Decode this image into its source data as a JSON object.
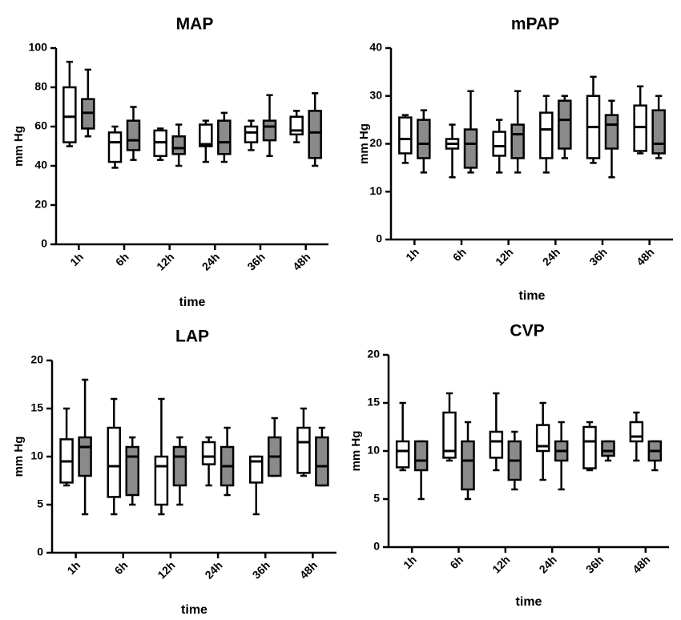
{
  "colors": {
    "series_a": "#ffffff",
    "series_b": "#8a8a8a",
    "stroke": "#000000"
  },
  "chart_data": [
    {
      "type": "box",
      "title": "MAP",
      "xlabel": "time",
      "ylabel": "mm Hg",
      "ylim": [
        0,
        100
      ],
      "yticks": [
        0,
        20,
        40,
        60,
        80,
        100
      ],
      "categories": [
        "1h",
        "6h",
        "12h",
        "24h",
        "36h",
        "48h"
      ],
      "series": [
        {
          "fill": "white",
          "boxes": [
            {
              "min": 50,
              "q1": 52,
              "median": 65,
              "q3": 80,
              "max": 93
            },
            {
              "min": 39,
              "q1": 42,
              "median": 52,
              "q3": 57,
              "max": 60
            },
            {
              "min": 43,
              "q1": 45,
              "median": 52,
              "q3": 58,
              "max": 59
            },
            {
              "min": 42,
              "q1": 50,
              "median": 51,
              "q3": 61,
              "max": 63
            },
            {
              "min": 48,
              "q1": 52,
              "median": 57,
              "q3": 60,
              "max": 63
            },
            {
              "min": 52,
              "q1": 56,
              "median": 58,
              "q3": 65,
              "max": 68
            }
          ]
        },
        {
          "fill": "gray",
          "boxes": [
            {
              "min": 55,
              "q1": 59,
              "median": 67,
              "q3": 74,
              "max": 89
            },
            {
              "min": 43,
              "q1": 48,
              "median": 53,
              "q3": 63,
              "max": 70
            },
            {
              "min": 40,
              "q1": 46,
              "median": 49,
              "q3": 55,
              "max": 61
            },
            {
              "min": 42,
              "q1": 46,
              "median": 52,
              "q3": 63,
              "max": 67
            },
            {
              "min": 45,
              "q1": 53,
              "median": 60,
              "q3": 63,
              "max": 76
            },
            {
              "min": 40,
              "q1": 44,
              "median": 57,
              "q3": 68,
              "max": 77
            }
          ]
        }
      ]
    },
    {
      "type": "box",
      "title": "mPAP",
      "xlabel": "time",
      "ylabel": "mm Hg",
      "ylim": [
        0,
        40
      ],
      "yticks": [
        0,
        10,
        20,
        30,
        40
      ],
      "categories": [
        "1h",
        "6h",
        "12h",
        "24h",
        "36h",
        "48h"
      ],
      "series": [
        {
          "fill": "white",
          "boxes": [
            {
              "min": 16,
              "q1": 18,
              "median": 21,
              "q3": 25.5,
              "max": 26
            },
            {
              "min": 13,
              "q1": 19,
              "median": 20,
              "q3": 21,
              "max": 24
            },
            {
              "min": 14,
              "q1": 17.5,
              "median": 19.5,
              "q3": 22.5,
              "max": 25
            },
            {
              "min": 14,
              "q1": 17,
              "median": 23,
              "q3": 26.5,
              "max": 30
            },
            {
              "min": 16,
              "q1": 17,
              "median": 23.5,
              "q3": 30,
              "max": 34
            },
            {
              "min": 18,
              "q1": 18.5,
              "median": 23.5,
              "q3": 28,
              "max": 32
            }
          ]
        },
        {
          "fill": "gray",
          "boxes": [
            {
              "min": 14,
              "q1": 17,
              "median": 20,
              "q3": 25,
              "max": 27
            },
            {
              "min": 14,
              "q1": 15,
              "median": 20,
              "q3": 23,
              "max": 31
            },
            {
              "min": 14,
              "q1": 17,
              "median": 22,
              "q3": 24,
              "max": 31
            },
            {
              "min": 17,
              "q1": 19,
              "median": 25,
              "q3": 29,
              "max": 30
            },
            {
              "min": 13,
              "q1": 19,
              "median": 24,
              "q3": 26,
              "max": 29
            },
            {
              "min": 17,
              "q1": 18,
              "median": 20,
              "q3": 27,
              "max": 30
            }
          ]
        }
      ]
    },
    {
      "type": "box",
      "title": "LAP",
      "xlabel": "time",
      "ylabel": "mm Hg",
      "ylim": [
        0,
        20
      ],
      "yticks": [
        0,
        5,
        10,
        15,
        20
      ],
      "categories": [
        "1h",
        "6h",
        "12h",
        "24h",
        "36h",
        "48h"
      ],
      "series": [
        {
          "fill": "white",
          "boxes": [
            {
              "min": 7,
              "q1": 7.3,
              "median": 9.5,
              "q3": 11.8,
              "max": 15
            },
            {
              "min": 4,
              "q1": 5.8,
              "median": 9,
              "q3": 13,
              "max": 16
            },
            {
              "min": 4,
              "q1": 5,
              "median": 9,
              "q3": 10,
              "max": 16
            },
            {
              "min": 7,
              "q1": 9.2,
              "median": 10,
              "q3": 11.5,
              "max": 12
            },
            {
              "min": 4,
              "q1": 7.3,
              "median": 9.5,
              "q3": 10,
              "max": 10
            },
            {
              "min": 8,
              "q1": 8.3,
              "median": 11.5,
              "q3": 13,
              "max": 15
            }
          ]
        },
        {
          "fill": "gray",
          "boxes": [
            {
              "min": 4,
              "q1": 8,
              "median": 11,
              "q3": 12,
              "max": 18
            },
            {
              "min": 5,
              "q1": 6,
              "median": 10,
              "q3": 11,
              "max": 12
            },
            {
              "min": 5,
              "q1": 7,
              "median": 10,
              "q3": 11,
              "max": 12
            },
            {
              "min": 6,
              "q1": 7,
              "median": 9,
              "q3": 11,
              "max": 13
            },
            {
              "min": 8,
              "q1": 8,
              "median": 10,
              "q3": 12,
              "max": 14
            },
            {
              "min": 7,
              "q1": 7,
              "median": 9,
              "q3": 12,
              "max": 13
            }
          ]
        }
      ]
    },
    {
      "type": "box",
      "title": "CVP",
      "xlabel": "time",
      "ylabel": "mm Hg",
      "ylim": [
        0,
        20
      ],
      "yticks": [
        0,
        5,
        10,
        15,
        20
      ],
      "categories": [
        "1h",
        "6h",
        "12h",
        "24h",
        "36h",
        "48h"
      ],
      "series": [
        {
          "fill": "white",
          "boxes": [
            {
              "min": 8,
              "q1": 8.3,
              "median": 10,
              "q3": 11,
              "max": 15
            },
            {
              "min": 9,
              "q1": 9.3,
              "median": 10,
              "q3": 14,
              "max": 16
            },
            {
              "min": 8,
              "q1": 9.3,
              "median": 11,
              "q3": 12,
              "max": 16
            },
            {
              "min": 7,
              "q1": 10,
              "median": 10.5,
              "q3": 12.7,
              "max": 15
            },
            {
              "min": 8,
              "q1": 8.2,
              "median": 11,
              "q3": 12.5,
              "max": 13
            },
            {
              "min": 9,
              "q1": 11,
              "median": 11.5,
              "q3": 13,
              "max": 14
            }
          ]
        },
        {
          "fill": "gray",
          "boxes": [
            {
              "min": 5,
              "q1": 8,
              "median": 9,
              "q3": 11,
              "max": 11
            },
            {
              "min": 5,
              "q1": 6,
              "median": 9,
              "q3": 11,
              "max": 13
            },
            {
              "min": 6,
              "q1": 7,
              "median": 9,
              "q3": 11,
              "max": 12
            },
            {
              "min": 6,
              "q1": 9,
              "median": 10,
              "q3": 11,
              "max": 13
            },
            {
              "min": 9,
              "q1": 9.5,
              "median": 10,
              "q3": 11,
              "max": 11
            },
            {
              "min": 8,
              "q1": 9,
              "median": 10,
              "q3": 11,
              "max": 11
            }
          ]
        }
      ]
    }
  ]
}
